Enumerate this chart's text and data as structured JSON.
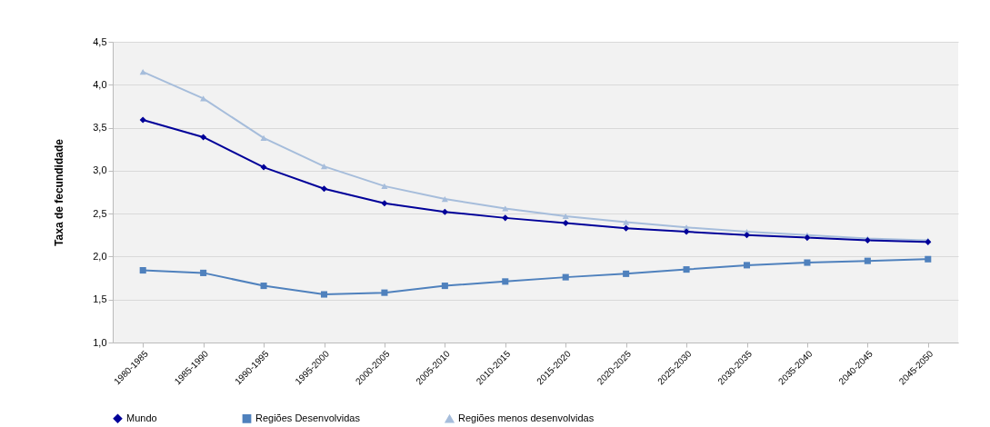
{
  "chart_data": {
    "type": "line",
    "ylabel": "Taxa de fecundidade",
    "categories": [
      "1980-1985",
      "1985-1990",
      "1990-1995",
      "1995-2000",
      "2000-2005",
      "2005-2010",
      "2010-2015",
      "2015-2020",
      "2020-2025",
      "2025-2030",
      "2030-2035",
      "2035-2040",
      "2040-2045",
      "2045-2050"
    ],
    "series": [
      {
        "name": "Mundo",
        "color": "#000099",
        "marker": "diamond",
        "values": [
          3.59,
          3.39,
          3.04,
          2.79,
          2.62,
          2.52,
          2.45,
          2.39,
          2.33,
          2.29,
          2.25,
          2.22,
          2.19,
          2.17
        ]
      },
      {
        "name": "Regiões Desenvolvidas",
        "color": "#4f81bd",
        "marker": "square",
        "values": [
          1.84,
          1.81,
          1.66,
          1.56,
          1.58,
          1.66,
          1.71,
          1.76,
          1.8,
          1.85,
          1.9,
          1.93,
          1.95,
          1.97
        ]
      },
      {
        "name": "Regiões menos desenvolvidas",
        "color": "#a6bddb",
        "marker": "triangle",
        "values": [
          4.15,
          3.84,
          3.38,
          3.05,
          2.82,
          2.67,
          2.56,
          2.47,
          2.4,
          2.34,
          2.29,
          2.25,
          2.21,
          2.19
        ]
      }
    ],
    "ylim": [
      1.0,
      4.5
    ],
    "yticks": [
      {
        "value": 1.0,
        "label": "1,0"
      },
      {
        "value": 1.5,
        "label": "1,5"
      },
      {
        "value": 2.0,
        "label": "2,0"
      },
      {
        "value": 2.5,
        "label": "2,5"
      },
      {
        "value": 3.0,
        "label": "3,0"
      },
      {
        "value": 3.5,
        "label": "3,5"
      },
      {
        "value": 4.0,
        "label": "4,0"
      },
      {
        "value": 4.5,
        "label": "4,5"
      }
    ],
    "grid": "y",
    "legend": "bottom",
    "line_style": "solid"
  }
}
